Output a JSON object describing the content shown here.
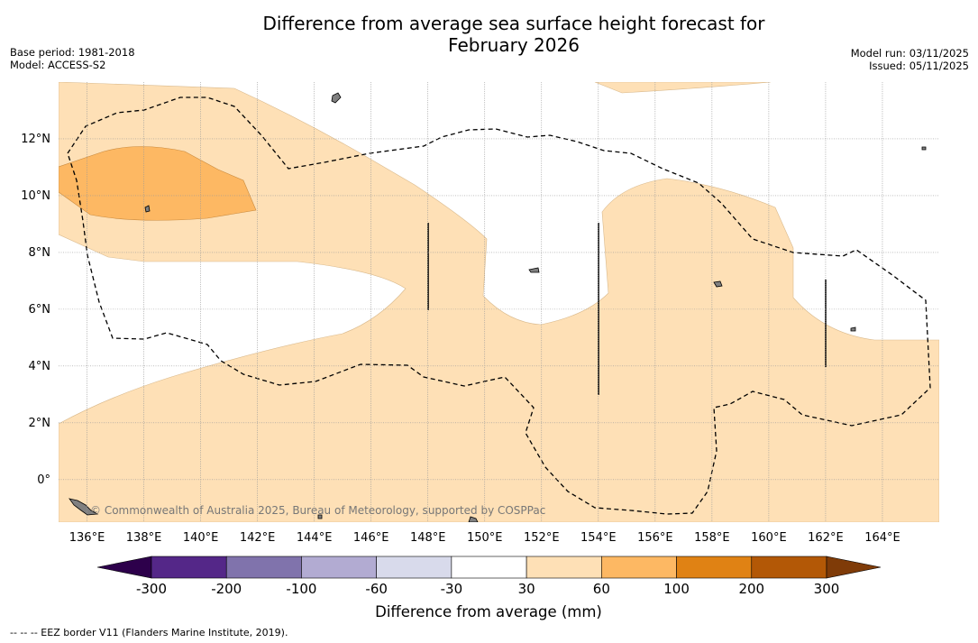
{
  "title_line1": "Difference from average sea surface height forecast for",
  "title_line2": "February 2026",
  "base_period": "Base period: 1981-2018",
  "model": "Model: ACCESS-S2",
  "model_run": "Model run: 03/11/2025",
  "issued": "Issued: 05/11/2025",
  "credit": "© Commonwealth of Australia 2025, Bureau of Meteorology, supported by COSPPac",
  "footer_legend": "--  --  -- EEZ border V11 (Flanders Marine Institute, 2019).",
  "map": {
    "lon_range": [
      135,
      166
    ],
    "lat_range": [
      -1.5,
      14
    ],
    "lon_ticks": [
      "136°E",
      "138°E",
      "140°E",
      "142°E",
      "144°E",
      "146°E",
      "148°E",
      "150°E",
      "152°E",
      "154°E",
      "156°E",
      "158°E",
      "160°E",
      "162°E",
      "164°E"
    ],
    "lat_ticks": [
      "12°N",
      "10°N",
      "8°N",
      "6°N",
      "4°N",
      "2°N",
      "0°"
    ]
  },
  "colorbar": {
    "title": "Difference from average (mm)",
    "tick_labels": [
      "-300",
      "-200",
      "-100",
      "-60",
      "-30",
      "30",
      "60",
      "100",
      "200",
      "300"
    ],
    "bins": [
      {
        "label": "< -300",
        "color": "#2d004b"
      },
      {
        "label": "-300 to -200",
        "color": "#542788"
      },
      {
        "label": "-200 to -100",
        "color": "#8073ac"
      },
      {
        "label": "-100 to -60",
        "color": "#b2abd2"
      },
      {
        "label": "-60 to -30",
        "color": "#d8daeb"
      },
      {
        "label": "-30 to 30",
        "color": "#ffffff"
      },
      {
        "label": "30 to 60",
        "color": "#fee0b6"
      },
      {
        "label": "60 to 100",
        "color": "#fdb863"
      },
      {
        "label": "100 to 200",
        "color": "#e08214"
      },
      {
        "label": "200 to 300",
        "color": "#b35806"
      },
      {
        "label": "> 300",
        "color": "#7f3b08"
      }
    ]
  },
  "colors": {
    "light_orange": "#fee0b6",
    "medium_orange": "#fdb863",
    "land": "#808080",
    "gridline": "#888888"
  }
}
